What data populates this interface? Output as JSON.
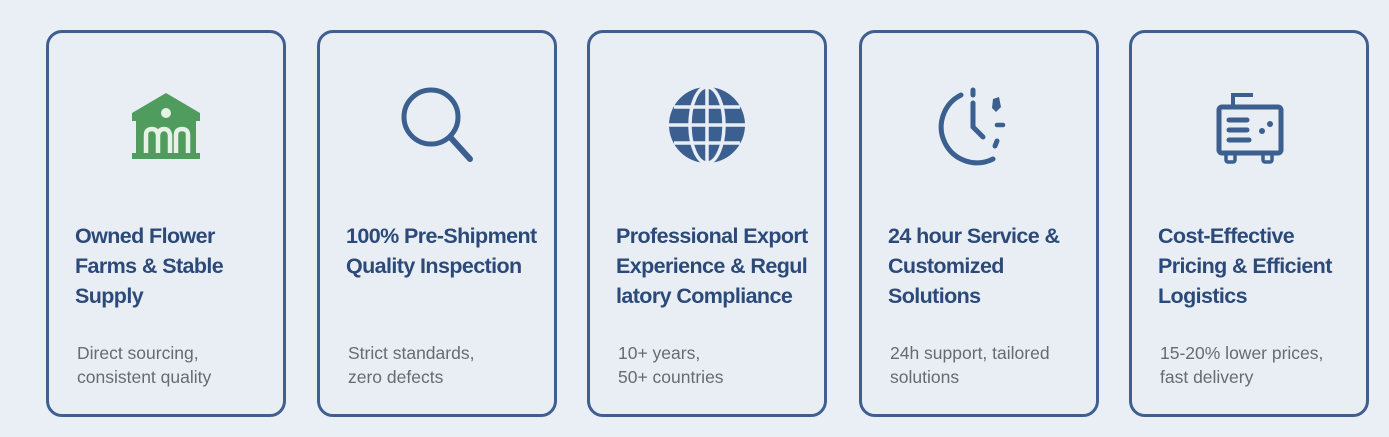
{
  "colors": {
    "border": "#3f5f8e",
    "title": "#2b4a79",
    "icon_blue": "#3b5f8f",
    "icon_green": "#4f9c5e",
    "background": "#eaeff6"
  },
  "cards": [
    {
      "icon": "farm-house-icon",
      "title": [
        "Owned Flower",
        "Farms & Stable",
        "Supply"
      ],
      "desc": [
        "Direct sourcing,",
        "consistent quality"
      ]
    },
    {
      "icon": "magnifier-icon",
      "title": [
        "100% Pre-Shipment",
        "Quality Inspection"
      ],
      "desc": [
        "Strict standards,",
        "zero defects"
      ]
    },
    {
      "icon": "globe-icon",
      "title": [
        "Professional Export",
        "Experience & Regul",
        "latory Compliance"
      ],
      "desc": [
        "10+ years,",
        "50+ countries"
      ]
    },
    {
      "icon": "clock-icon",
      "title": [
        "24 hour Service &",
        "Customized",
        "Solutions"
      ],
      "desc": [
        "24h support, tailored",
        "solutions"
      ]
    },
    {
      "icon": "cargo-icon",
      "title": [
        "Cost-Effective",
        "Pricing & Efficient",
        "Logistics"
      ],
      "desc": [
        "15-20% lower prices,",
        "fast delivery"
      ]
    }
  ]
}
